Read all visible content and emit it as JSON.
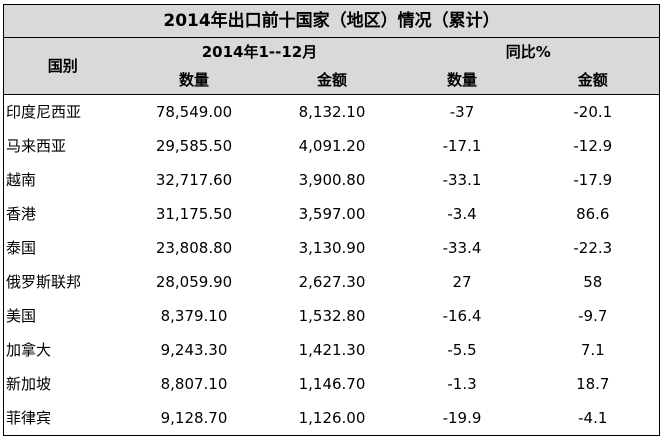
{
  "title": "2014年出口前十国家（地区）情况（累计）",
  "header": {
    "country": "国别",
    "period": "2014年1--12月",
    "yoy": "同比%",
    "quantity": "数量",
    "amount": "金额"
  },
  "rows": [
    {
      "country": "印度尼西亚",
      "quantity": "78,549.00",
      "amount": "8,132.10",
      "yoy_quantity": "-37",
      "yoy_amount": "-20.1"
    },
    {
      "country": "马来西亚",
      "quantity": "29,585.50",
      "amount": "4,091.20",
      "yoy_quantity": "-17.1",
      "yoy_amount": "-12.9"
    },
    {
      "country": "越南",
      "quantity": "32,717.60",
      "amount": "3,900.80",
      "yoy_quantity": "-33.1",
      "yoy_amount": "-17.9"
    },
    {
      "country": "香港",
      "quantity": "31,175.50",
      "amount": "3,597.00",
      "yoy_quantity": "-3.4",
      "yoy_amount": "86.6"
    },
    {
      "country": "泰国",
      "quantity": "23,808.80",
      "amount": "3,130.90",
      "yoy_quantity": "-33.4",
      "yoy_amount": "-22.3"
    },
    {
      "country": "俄罗斯联邦",
      "quantity": "28,059.90",
      "amount": "2,627.30",
      "yoy_quantity": "27",
      "yoy_amount": "58"
    },
    {
      "country": "美国",
      "quantity": "8,379.10",
      "amount": "1,532.80",
      "yoy_quantity": "-16.4",
      "yoy_amount": "-9.7"
    },
    {
      "country": "加拿大",
      "quantity": "9,243.30",
      "amount": "1,421.30",
      "yoy_quantity": "-5.5",
      "yoy_amount": "7.1"
    },
    {
      "country": "新加坡",
      "quantity": "8,807.10",
      "amount": "1,146.70",
      "yoy_quantity": "-1.3",
      "yoy_amount": "18.7"
    },
    {
      "country": "菲律宾",
      "quantity": "9,128.70",
      "amount": "1,126.00",
      "yoy_quantity": "-19.9",
      "yoy_amount": "-4.1"
    }
  ]
}
